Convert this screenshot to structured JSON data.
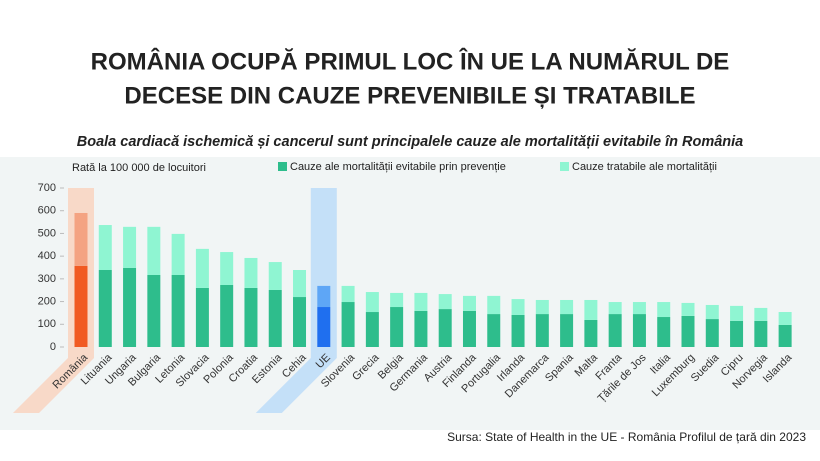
{
  "chart_data": {
    "type": "stacked_bar",
    "title": [
      "ROMÂNIA OCUPĂ PRIMUL LOC ÎN UE LA NUMĂRUL DE",
      "DECESE DIN CAUZE PREVENIBILE ȘI TRATABILE"
    ],
    "subtitle": "Boala cardiacă ischemică și cancerul sunt principalele cauze ale mortalității evitabile în România",
    "y_label": "Rată la 100 000 de locuitori",
    "source": "Sursa: State of Health in the UE - România Profilul de țară din 2023",
    "categories": [
      "România",
      "Lituania",
      "Ungaria",
      "Bulgaria",
      "Letonia",
      "Slovacia",
      "Polonia",
      "Croatia",
      "Estonia",
      "Cehia",
      "UE",
      "Slovenia",
      "Grecia",
      "Belgia",
      "Germania",
      "Austria",
      "Finlanda",
      "Portugalia",
      "Irlanda",
      "Danemarca",
      "Spania",
      "Malta",
      "Franta",
      "Țările de Jos",
      "Italia",
      "Luxemburg",
      "Suedia",
      "Cipru",
      "Norvegia",
      "Islanda"
    ],
    "series": [
      {
        "name": "Cauze ale mortalității evitabile prin prevenție",
        "color": "#2ebd8c",
        "values": [
          357,
          339,
          348,
          317,
          317,
          260,
          273,
          260,
          251,
          220,
          176,
          198,
          154,
          176,
          159,
          167,
          159,
          145,
          141,
          145,
          145,
          119,
          145,
          145,
          132,
          137,
          123,
          115,
          115,
          97
        ]
      },
      {
        "name": "Cauze tratabile ale mortalității",
        "color": "#8ff5d2",
        "values": [
          233,
          198,
          181,
          212,
          181,
          172,
          145,
          132,
          123,
          119,
          93,
          71,
          88,
          62,
          79,
          66,
          66,
          80,
          70,
          62,
          62,
          88,
          53,
          53,
          66,
          57,
          62,
          66,
          57,
          57
        ]
      }
    ],
    "highlights": [
      {
        "category": "România",
        "colors": [
          "#f15a22",
          "#f4a382"
        ],
        "band": "#f9d3c0"
      },
      {
        "category": "UE",
        "colors": [
          "#1f6fef",
          "#5ea6f6"
        ],
        "band": "#bcdcf8"
      }
    ],
    "ylim": [
      0,
      700
    ],
    "yticks": [
      0,
      100,
      200,
      300,
      400,
      500,
      600,
      700
    ]
  }
}
